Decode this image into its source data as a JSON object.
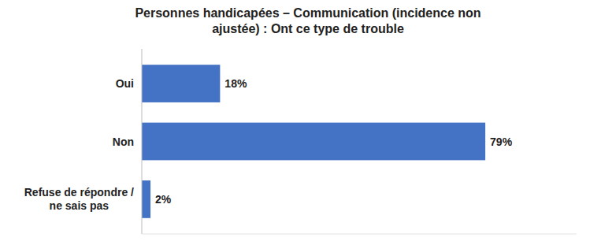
{
  "chart_data": {
    "type": "bar",
    "orientation": "horizontal",
    "title": "Personnes handicapées – Communication (incidence non\najustée) : Ont ce type de trouble",
    "categories": [
      "Oui",
      "Non",
      "Refuse de répondre /\nne sais pas"
    ],
    "values": [
      18,
      79,
      2
    ],
    "value_labels": [
      "18%",
      "79%",
      "2%"
    ],
    "data_labels": true,
    "color": "#4472C4",
    "xlim": [
      0,
      100
    ],
    "tick_labels": "y",
    "grid": false
  }
}
